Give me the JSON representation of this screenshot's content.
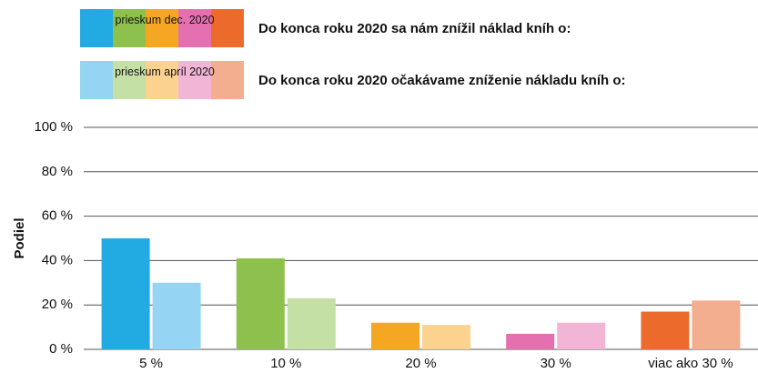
{
  "chart_data": {
    "type": "bar",
    "ylabel": "Podiel",
    "categories": [
      "5 %",
      "10 %",
      "20 %",
      "30 %",
      "viac ako 30 %"
    ],
    "series": [
      {
        "name": "prieskum dec. 2020",
        "colors": [
          "#22abe2",
          "#8dc04d",
          "#f5a623",
          "#e570b0",
          "#ec6a2c"
        ],
        "values": [
          50,
          41,
          12,
          7,
          17
        ]
      },
      {
        "name": "prieskum apríl 2020",
        "colors": [
          "#95d4f2",
          "#c5e0a5",
          "#fcd28f",
          "#f2b5d6",
          "#f2ae8e"
        ],
        "values": [
          30,
          23,
          11,
          12,
          22
        ]
      }
    ],
    "annotations": [
      "Do konca roku 2020 sa nám znížil náklad kníh o:",
      "Do konca roku 2020 očakávame zníženie nákladu kníh o:"
    ],
    "ylim": [
      0,
      100
    ],
    "yticks": [
      {
        "value": 0,
        "label": "0 %"
      },
      {
        "value": 20,
        "label": "20 %"
      },
      {
        "value": 40,
        "label": "40 %"
      },
      {
        "value": 60,
        "label": "60 %"
      },
      {
        "value": 80,
        "label": "80 %"
      },
      {
        "value": 100,
        "label": "100 %"
      }
    ],
    "grid": true
  }
}
